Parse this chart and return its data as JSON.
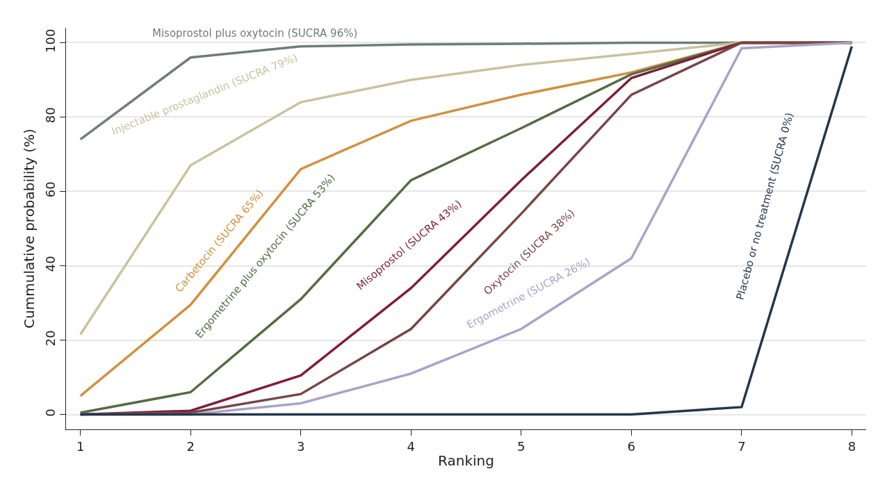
{
  "chart_data": {
    "type": "line",
    "xlabel": "Ranking",
    "ylabel": "Cummulative probability (%)",
    "x": [
      1,
      2,
      3,
      4,
      5,
      6,
      7,
      8
    ],
    "xlim": [
      0.87,
      8.13
    ],
    "xticks": [
      1,
      2,
      3,
      4,
      5,
      6,
      7,
      8
    ],
    "ylim": [
      -4,
      104
    ],
    "yticks": [
      0,
      20,
      40,
      60,
      80,
      100
    ],
    "grid": "y",
    "legend": false,
    "marker": "none",
    "line_style": "solid",
    "series": [
      {
        "name": "Misoprostol plus oxytocin (SUCRA 96%)",
        "color": "#6f7d78",
        "values": [
          74,
          96,
          99,
          99.5,
          99.7,
          100,
          100,
          100
        ]
      },
      {
        "name": "Injectable prostaglandin (SUCRA 79%)",
        "color": "#c9c29e",
        "values": [
          21.5,
          67,
          84,
          90,
          94,
          97,
          100,
          100
        ]
      },
      {
        "name": "Carbetocin (SUCRA 65%)",
        "color": "#d1913f",
        "values": [
          5,
          29.5,
          66,
          79,
          86,
          92,
          100,
          100
        ]
      },
      {
        "name": "Ergometrine plus oxytocin (SUCRA 53%)",
        "color": "#566b45",
        "values": [
          0.5,
          6,
          31,
          63,
          77,
          91.5,
          100,
          100
        ]
      },
      {
        "name": "Misoprostol (SUCRA 43%)",
        "color": "#7d1f3a",
        "values": [
          0,
          1,
          10.5,
          34,
          63,
          90.5,
          100,
          100
        ]
      },
      {
        "name": "Oxytocin (SUCRA 38%)",
        "color": "#774646",
        "values": [
          0,
          0.5,
          5.5,
          23,
          54,
          86,
          100,
          100
        ]
      },
      {
        "name": "Ergometrine (SUCRA 26%)",
        "color": "#a9a4c6",
        "values": [
          0,
          0,
          3,
          11,
          23,
          42,
          98.5,
          100
        ]
      },
      {
        "name": "Placebo or no treatment (SUCRA 0%)",
        "color": "#25364a",
        "values": [
          0,
          0,
          0,
          0,
          0,
          0,
          2,
          99
        ]
      }
    ]
  }
}
